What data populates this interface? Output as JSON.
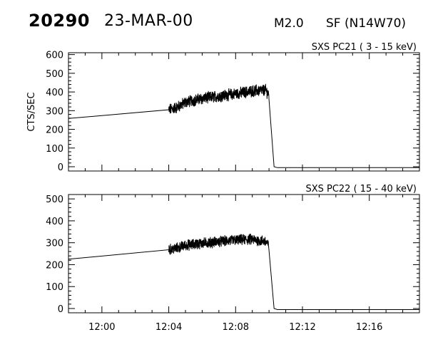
{
  "header": {
    "event_id": "20290",
    "date": "23-MAR-00",
    "flare_class": "M2.0",
    "flare_location": "SF (N14W70)"
  },
  "colors": {
    "line": "#000000",
    "background": "#ffffff"
  },
  "chart_data": [
    {
      "type": "line",
      "title": "SXS PC21  (  3 - 15 keV)",
      "ylabel": "CTS/SEC",
      "ylim": [
        0,
        610
      ],
      "yticks": [
        0,
        100,
        200,
        300,
        400,
        500,
        600
      ],
      "xlim": [
        "11:58",
        "12:19"
      ],
      "xticks": [
        "12:00",
        "12:04",
        "12:08",
        "12:12",
        "12:16"
      ],
      "show_xtick_labels": false,
      "series": [
        {
          "x": [
            "11:58",
            "12:04",
            "12:04.5",
            "12:05",
            "12:06",
            "12:07",
            "12:08",
            "12:09",
            "12:09.8",
            "12:10",
            "12:10.3",
            "12:10.5",
            "12:19"
          ],
          "values": [
            258,
            305,
            318,
            345,
            365,
            378,
            390,
            405,
            410,
            382,
            0,
            -5,
            -5
          ],
          "noise": 28
        }
      ]
    },
    {
      "type": "line",
      "title": "SXS PC22  ( 15 - 40 keV)",
      "ylabel": "",
      "ylim": [
        0,
        520
      ],
      "yticks": [
        0,
        100,
        200,
        300,
        400,
        500
      ],
      "xlim": [
        "11:58",
        "12:19"
      ],
      "xticks": [
        "12:00",
        "12:04",
        "12:08",
        "12:12",
        "12:16"
      ],
      "show_xtick_labels": true,
      "series": [
        {
          "x": [
            "11:58",
            "12:04",
            "12:04.5",
            "12:05",
            "12:06",
            "12:07",
            "12:08",
            "12:09",
            "12:09.8",
            "12:10",
            "12:10.3",
            "12:10.5",
            "12:19"
          ],
          "values": [
            225,
            268,
            275,
            288,
            298,
            305,
            312,
            315,
            305,
            285,
            0,
            -5,
            -5
          ],
          "noise": 22
        }
      ]
    }
  ]
}
